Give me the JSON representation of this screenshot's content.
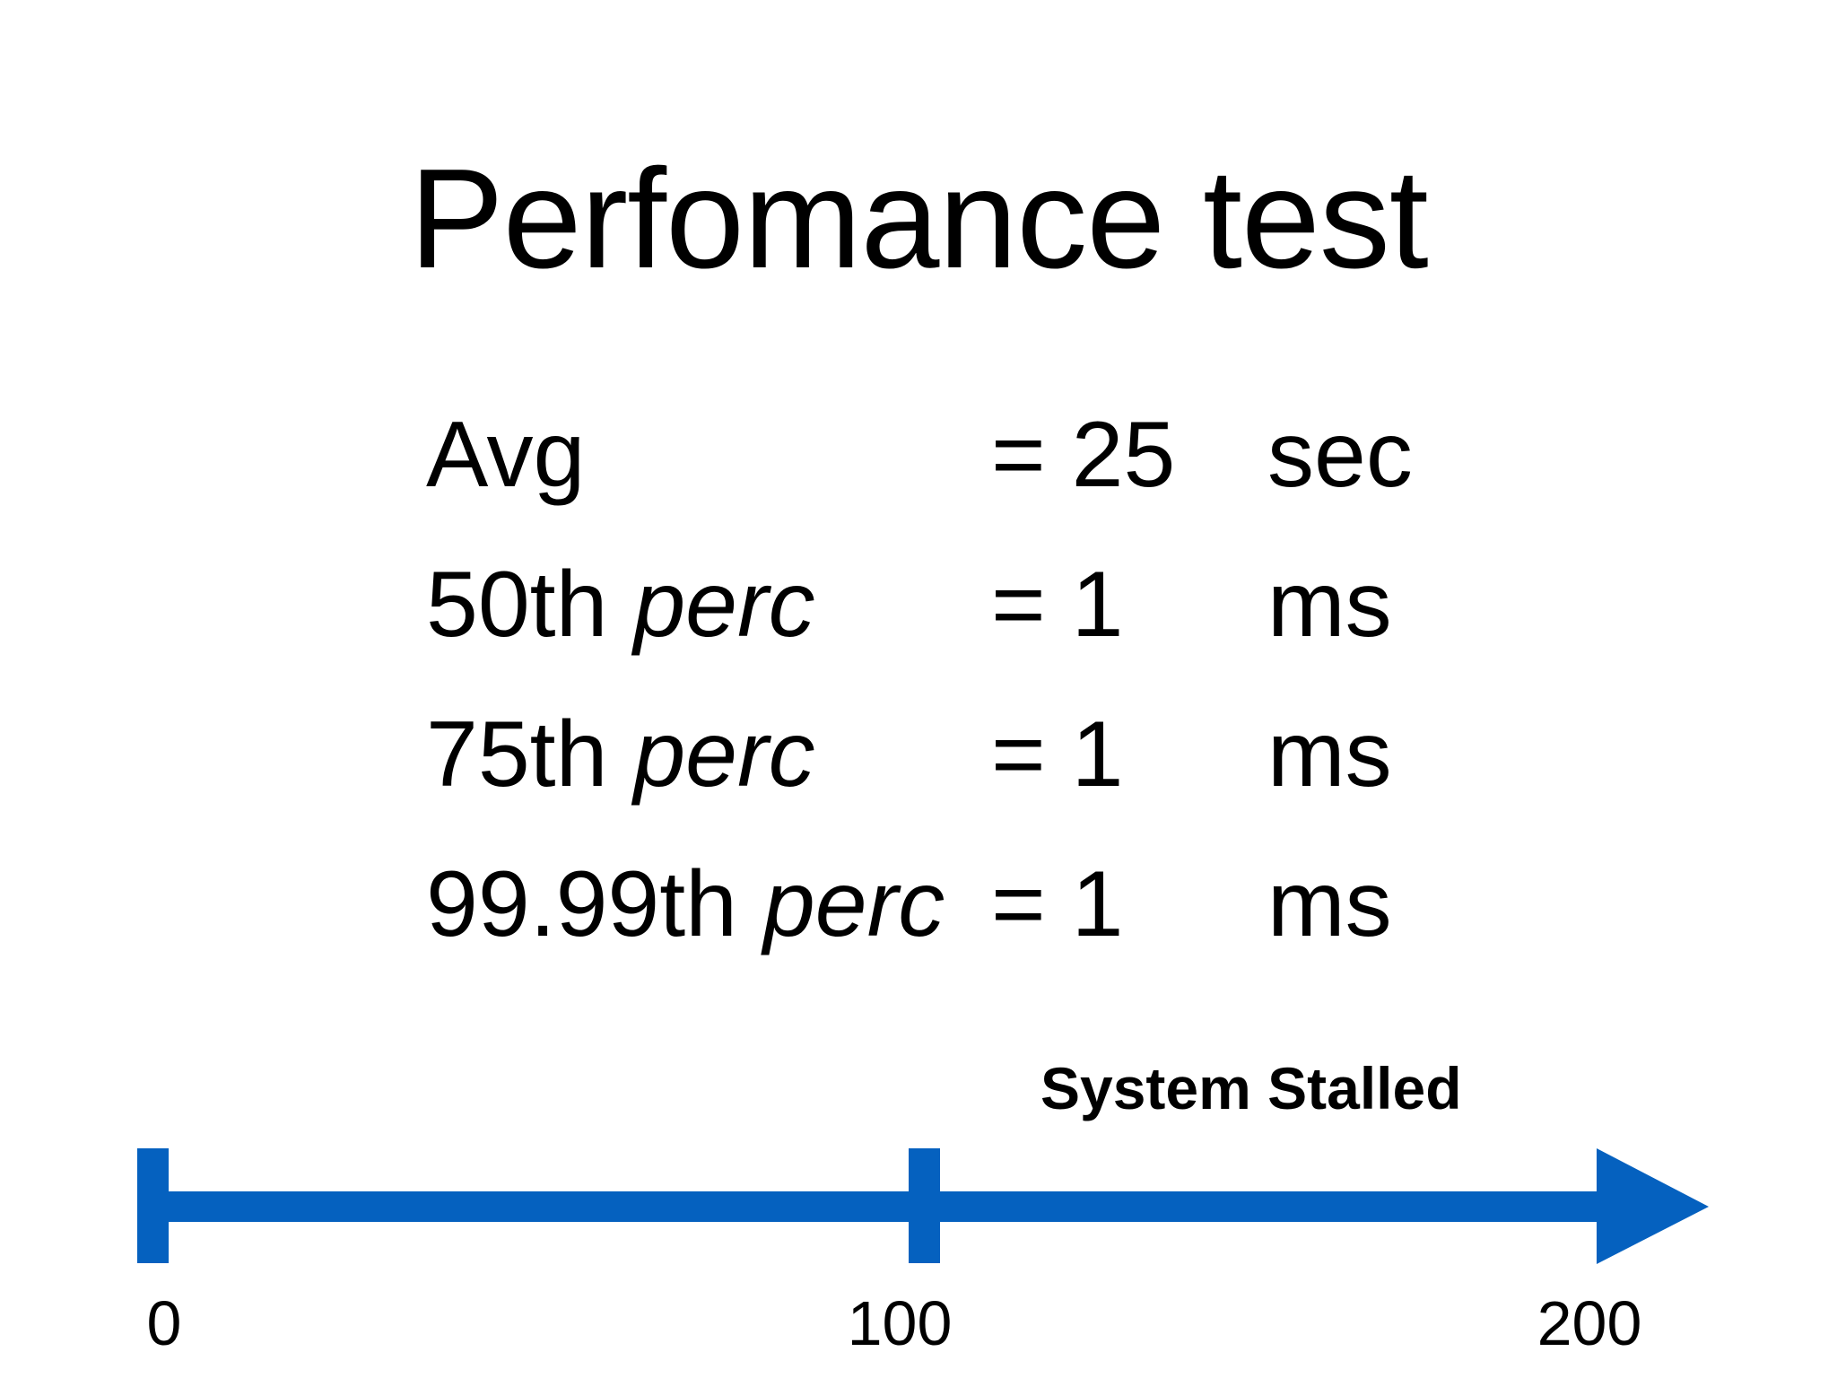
{
  "slide": {
    "title": "Perfomance test"
  },
  "stats": [
    {
      "label": "Avg",
      "perc": "",
      "eq": "= 25",
      "unit": "sec"
    },
    {
      "label": "50th ",
      "perc": "perc",
      "eq": "= 1",
      "unit": "ms"
    },
    {
      "label": "75th ",
      "perc": "perc",
      "eq": "= 1",
      "unit": "ms"
    },
    {
      "label": "99.99th ",
      "perc": "perc",
      "eq": "= 1",
      "unit": "ms"
    }
  ],
  "timeline": {
    "stalled_label": "System Stalled",
    "ticks": [
      "0",
      "100",
      "200"
    ],
    "axis_color": "#0561BF"
  }
}
